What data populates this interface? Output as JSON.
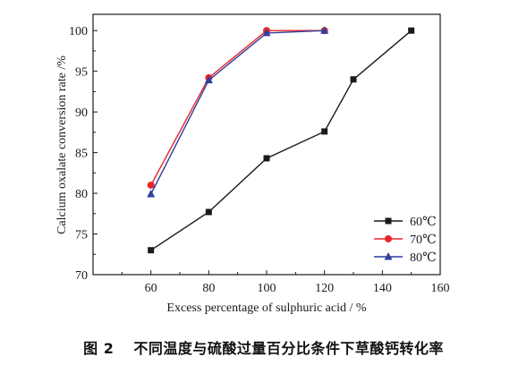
{
  "chart_data": {
    "type": "line",
    "xlabel": "Excess percentage of sulphuric acid / %",
    "ylabel": "Calcium oxalate conversion rate /%",
    "xlim": [
      40,
      160
    ],
    "ylim": [
      70,
      102
    ],
    "xticks": [
      40,
      60,
      80,
      100,
      120,
      140,
      160
    ],
    "xtick_labels": [
      "",
      "60",
      "80",
      "100",
      "120",
      "140",
      "160"
    ],
    "yticks": [
      70,
      75,
      80,
      85,
      90,
      95,
      100
    ],
    "grid": false,
    "legend_position": "bottom-right",
    "series": [
      {
        "name": "60℃",
        "marker": "square",
        "color": "#1a1a1a",
        "points": [
          [
            60,
            73.0
          ],
          [
            80,
            77.7
          ],
          [
            100,
            84.3
          ],
          [
            120,
            87.6
          ],
          [
            130,
            94.0
          ],
          [
            150,
            100.0
          ]
        ]
      },
      {
        "name": "70℃",
        "marker": "circle",
        "color": "#e8262a",
        "points": [
          [
            60,
            81.0
          ],
          [
            80,
            94.2
          ],
          [
            100,
            100.0
          ],
          [
            120,
            100.0
          ]
        ]
      },
      {
        "name": "80℃",
        "marker": "triangle",
        "color": "#2f3f9e",
        "points": [
          [
            60,
            79.9
          ],
          [
            80,
            93.9
          ],
          [
            100,
            99.7
          ],
          [
            120,
            100.0
          ]
        ]
      }
    ]
  },
  "caption": {
    "figure_number": "图 2",
    "text": "不同温度与硫酸过量百分比条件下草酸钙转化率"
  }
}
